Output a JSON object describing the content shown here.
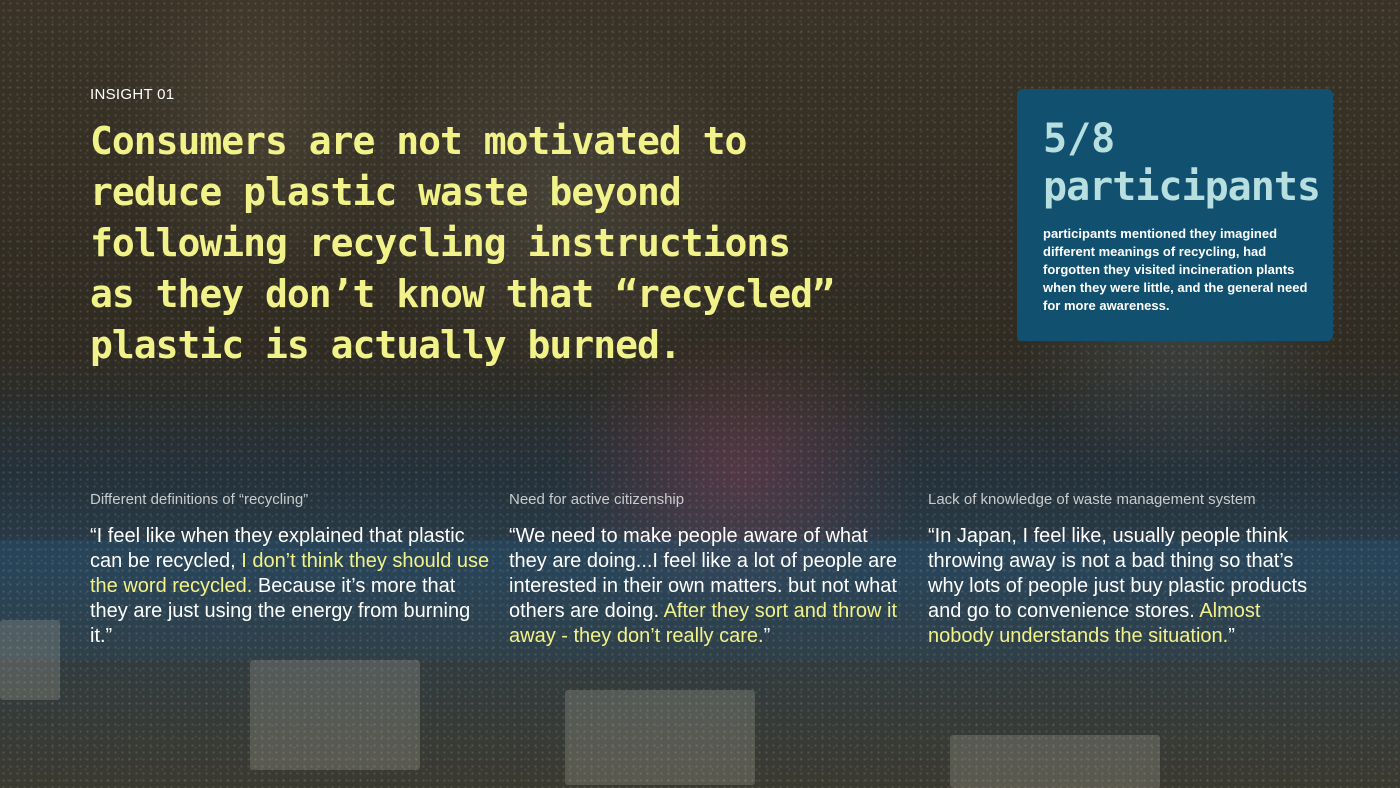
{
  "eyebrow": "INSIGHT 01",
  "headline": "Consumers are not motivated to reduce plastic waste beyond following recycling instructions as they don’t know that “recycled” plastic is actually burned.",
  "stat": {
    "number": "5/8",
    "unit": "participants",
    "description": " participants mentioned they imagined different meanings of recycling,  had forgotten they visited incineration plants when they were little, and the general need for more awareness."
  },
  "columns": [
    {
      "title": "Different definitions of “recycling”",
      "quote_before": "“I feel like when they explained that plastic can be recycled, ",
      "quote_highlight": "I don’t think they should use the word recycled.",
      "quote_after": " Because it’s more that they are just using the energy from burning it.”"
    },
    {
      "title": "Need for active citizenship",
      "quote_before": "“We need to make people aware of what they are doing...I feel like a lot of people are interested in their own matters. but not what others are doing. ",
      "quote_highlight": "After they sort and throw it away - they don’t really care.",
      "quote_after": "”"
    },
    {
      "title": "Lack of knowledge of waste management system",
      "quote_before": "“In Japan, I feel like, usually people think throwing away is not a bad thing so that’s why lots of people just buy plastic products and go to convenience stores. ",
      "quote_highlight": "Almost nobody understands the situation.",
      "quote_after": "”"
    }
  ],
  "colors": {
    "highlight": "#f2f28a",
    "card_bg": "#11506f",
    "card_text": "#b7dfe0"
  }
}
